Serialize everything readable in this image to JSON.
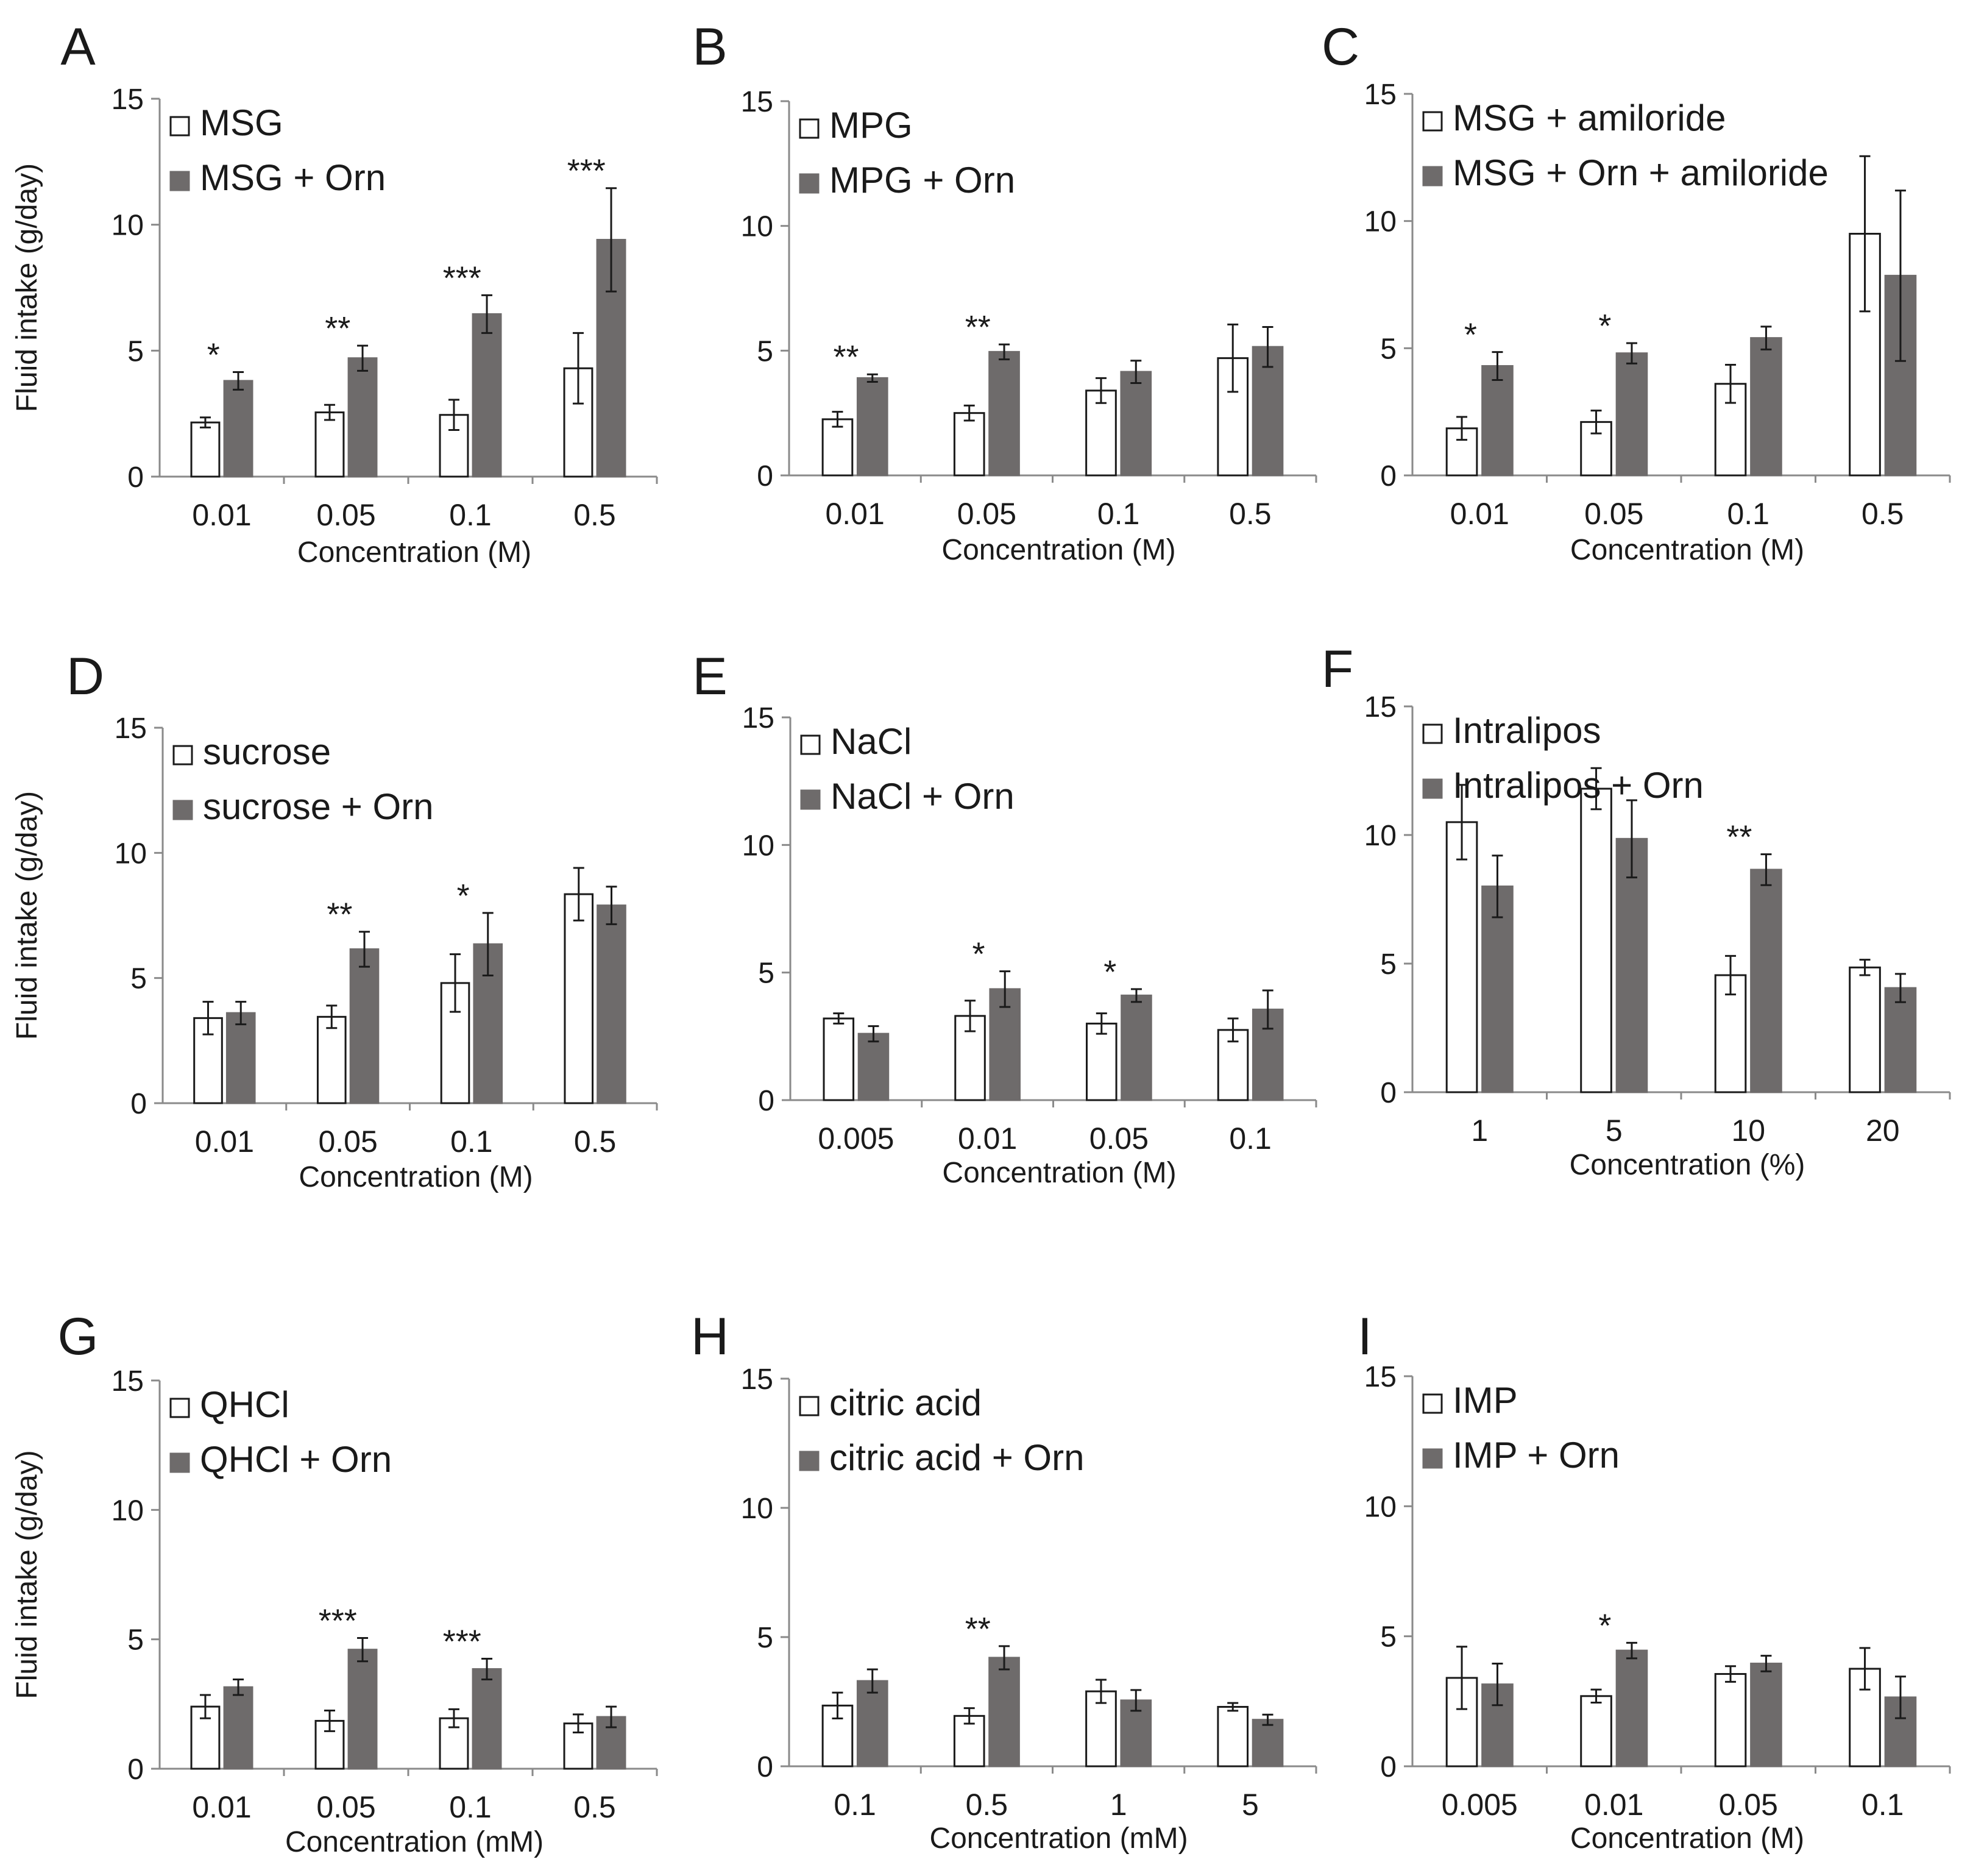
{
  "figure": {
    "colors": {
      "open_bar": "#ffffff",
      "filled_bar": "#6e6b6b",
      "ink": "#1a1a1a",
      "axis": "#8a8a8a"
    }
  },
  "chart_data": [
    {
      "panel": "A",
      "type": "bar",
      "categories": [
        "0.01",
        "0.05",
        "0.1",
        "0.5"
      ],
      "xlabel": "Concentration (M)",
      "ylabel": "Fluid intake (g/day)",
      "ylim": [
        0,
        15
      ],
      "yticks": [
        0,
        5,
        10,
        15
      ],
      "legend_position": "top-left",
      "series": [
        {
          "name": "MSG",
          "style": "open",
          "values": [
            2.15,
            2.55,
            2.45,
            4.3
          ],
          "errors": [
            0.2,
            0.3,
            0.6,
            1.4
          ]
        },
        {
          "name": "MSG + Orn",
          "style": "filled",
          "values": [
            3.8,
            4.7,
            6.45,
            9.4
          ],
          "errors": [
            0.35,
            0.5,
            0.75,
            2.05
          ]
        }
      ],
      "significance": [
        "*",
        "**",
        "***",
        "***"
      ]
    },
    {
      "panel": "B",
      "type": "bar",
      "categories": [
        "0.01",
        "0.05",
        "0.1",
        "0.5"
      ],
      "xlabel": "Concentration (M)",
      "ylabel": "",
      "ylim": [
        0,
        15
      ],
      "yticks": [
        0,
        5,
        10,
        15
      ],
      "legend_position": "top-left",
      "series": [
        {
          "name": "MPG",
          "style": "open",
          "values": [
            2.25,
            2.5,
            3.4,
            4.7
          ],
          "errors": [
            0.3,
            0.3,
            0.5,
            1.35
          ]
        },
        {
          "name": "MPG + Orn",
          "style": "filled",
          "values": [
            3.9,
            4.95,
            4.15,
            5.15
          ],
          "errors": [
            0.15,
            0.3,
            0.45,
            0.8
          ]
        }
      ],
      "significance": [
        "**",
        "**",
        "",
        ""
      ]
    },
    {
      "panel": "C",
      "type": "bar",
      "categories": [
        "0.01",
        "0.05",
        "0.1",
        "0.5"
      ],
      "xlabel": "Concentration (M)",
      "ylabel": "",
      "ylim": [
        0,
        15
      ],
      "yticks": [
        0,
        5,
        10,
        15
      ],
      "legend_position": "top-left",
      "series": [
        {
          "name": "MSG + amiloride",
          "style": "open",
          "values": [
            1.85,
            2.1,
            3.6,
            9.5
          ],
          "errors": [
            0.45,
            0.45,
            0.75,
            3.05
          ]
        },
        {
          "name": "MSG + Orn + amiloride",
          "style": "filled",
          "values": [
            4.3,
            4.8,
            5.4,
            7.85
          ],
          "errors": [
            0.55,
            0.4,
            0.45,
            3.35
          ]
        }
      ],
      "significance": [
        "*",
        "*",
        "",
        ""
      ]
    },
    {
      "panel": "D",
      "type": "bar",
      "categories": [
        "0.01",
        "0.05",
        "0.1",
        "0.5"
      ],
      "xlabel": "Concentration (M)",
      "ylabel": "Fluid intake (g/day)",
      "ylim": [
        0,
        15
      ],
      "yticks": [
        0,
        5,
        10,
        15
      ],
      "legend_position": "top-left",
      "series": [
        {
          "name": "sucrose",
          "style": "open",
          "values": [
            3.4,
            3.45,
            4.8,
            8.35
          ],
          "errors": [
            0.65,
            0.45,
            1.15,
            1.05
          ]
        },
        {
          "name": "sucrose + Orn",
          "style": "filled",
          "values": [
            3.6,
            6.15,
            6.35,
            7.9
          ],
          "errors": [
            0.45,
            0.7,
            1.25,
            0.75
          ]
        }
      ],
      "significance": [
        "",
        "**",
        "*",
        ""
      ]
    },
    {
      "panel": "E",
      "type": "bar",
      "categories": [
        "0.005",
        "0.01",
        "0.05",
        "0.1"
      ],
      "xlabel": "Concentration (M)",
      "ylabel": "",
      "ylim": [
        0,
        15
      ],
      "yticks": [
        0,
        5,
        10,
        15
      ],
      "legend_position": "top-left",
      "series": [
        {
          "name": "NaCl",
          "style": "open",
          "values": [
            3.2,
            3.3,
            3.0,
            2.75
          ],
          "errors": [
            0.2,
            0.6,
            0.4,
            0.45
          ]
        },
        {
          "name": "NaCl + Orn",
          "style": "filled",
          "values": [
            2.6,
            4.35,
            4.1,
            3.55
          ],
          "errors": [
            0.3,
            0.7,
            0.25,
            0.75
          ]
        }
      ],
      "significance": [
        "",
        "*",
        "*",
        ""
      ]
    },
    {
      "panel": "F",
      "type": "bar",
      "categories": [
        "1",
        "5",
        "10",
        "20"
      ],
      "xlabel": "Concentration (%)",
      "ylabel": "",
      "ylim": [
        0,
        15
      ],
      "yticks": [
        0,
        5,
        10,
        15
      ],
      "legend_position": "top-left",
      "series": [
        {
          "name": "Intralipos",
          "style": "open",
          "values": [
            10.5,
            11.8,
            4.55,
            4.85
          ],
          "errors": [
            1.45,
            0.8,
            0.75,
            0.3
          ]
        },
        {
          "name": "Intralipos + Orn",
          "style": "filled",
          "values": [
            8.0,
            9.85,
            8.65,
            4.05
          ],
          "errors": [
            1.2,
            1.5,
            0.6,
            0.55
          ]
        }
      ],
      "significance": [
        "",
        "",
        "**",
        ""
      ]
    },
    {
      "panel": "G",
      "type": "bar",
      "categories": [
        "0.01",
        "0.05",
        "0.1",
        "0.5"
      ],
      "xlabel": "Concentration (mM)",
      "ylabel": "Fluid intake (g/day)",
      "ylim": [
        0,
        15
      ],
      "yticks": [
        0,
        5,
        10,
        15
      ],
      "legend_position": "top-left",
      "series": [
        {
          "name": "QHCl",
          "style": "open",
          "values": [
            2.4,
            1.85,
            1.95,
            1.75
          ],
          "errors": [
            0.45,
            0.4,
            0.35,
            0.35
          ]
        },
        {
          "name": "QHCl + Orn",
          "style": "filled",
          "values": [
            3.15,
            4.6,
            3.85,
            2.0
          ],
          "errors": [
            0.3,
            0.45,
            0.4,
            0.4
          ]
        }
      ],
      "significance": [
        "",
        "***",
        "***",
        ""
      ]
    },
    {
      "panel": "H",
      "type": "bar",
      "categories": [
        "0.1",
        "0.5",
        "1",
        "5"
      ],
      "xlabel": "Concentration (mM)",
      "ylabel": "",
      "ylim": [
        0,
        15
      ],
      "yticks": [
        0,
        5,
        10,
        15
      ],
      "legend_position": "top-left",
      "series": [
        {
          "name": "citric acid",
          "style": "open",
          "values": [
            2.35,
            1.95,
            2.9,
            2.3
          ],
          "errors": [
            0.5,
            0.3,
            0.45,
            0.15
          ]
        },
        {
          "name": "citric acid + Orn",
          "style": "filled",
          "values": [
            3.3,
            4.2,
            2.55,
            1.8
          ],
          "errors": [
            0.45,
            0.45,
            0.4,
            0.2
          ]
        }
      ],
      "significance": [
        "",
        "**",
        "",
        ""
      ]
    },
    {
      "panel": "I",
      "type": "bar",
      "categories": [
        "0.005",
        "0.01",
        "0.05",
        "0.1"
      ],
      "xlabel": "Concentration (M)",
      "ylabel": "",
      "ylim": [
        0,
        15
      ],
      "yticks": [
        0,
        5,
        10,
        15
      ],
      "legend_position": "top-left",
      "series": [
        {
          "name": "IMP",
          "style": "open",
          "values": [
            3.4,
            2.7,
            3.55,
            3.75
          ],
          "errors": [
            1.2,
            0.25,
            0.3,
            0.8
          ]
        },
        {
          "name": "IMP + Orn",
          "style": "filled",
          "values": [
            3.15,
            4.45,
            3.95,
            2.65
          ],
          "errors": [
            0.8,
            0.3,
            0.3,
            0.8
          ]
        }
      ],
      "significance": [
        "",
        "*",
        "",
        ""
      ]
    }
  ]
}
